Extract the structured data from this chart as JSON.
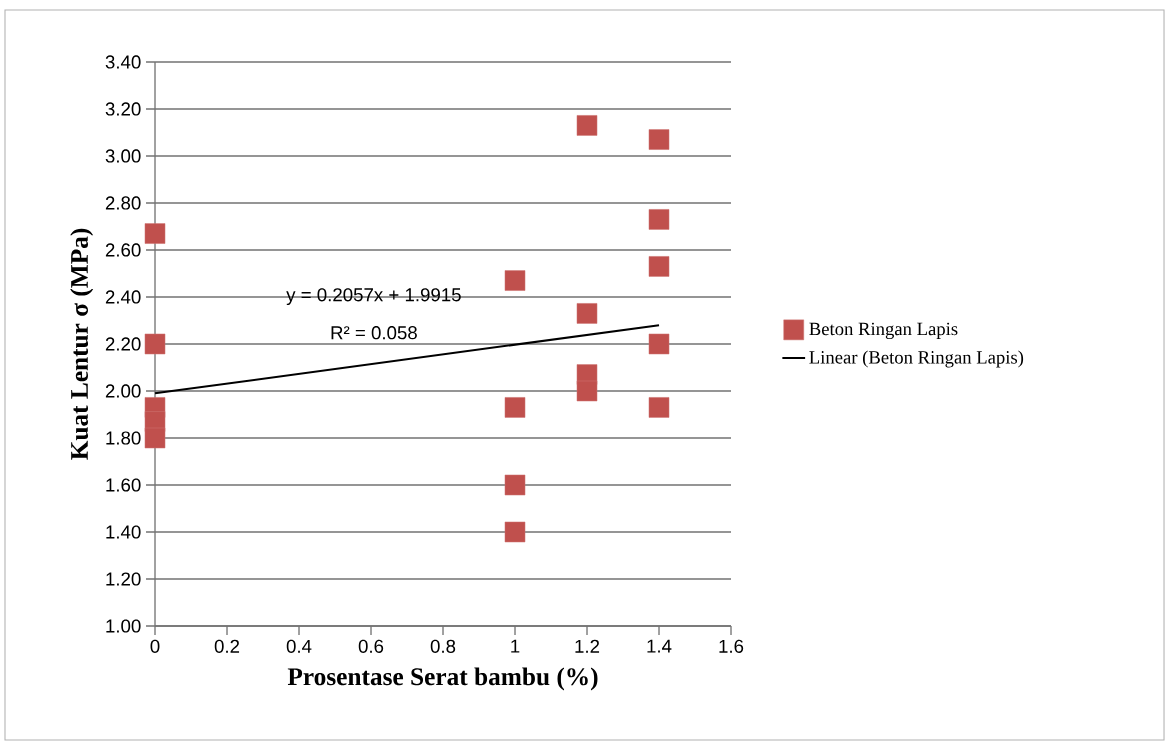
{
  "chart_data": {
    "type": "scatter",
    "xlabel": "Prosentase Serat bambu (%)",
    "ylabel": "Kuat Lentur σ (MPa)",
    "xlim": [
      0,
      1.6
    ],
    "xticks": [
      0,
      0.2,
      0.4,
      0.6,
      0.8,
      1,
      1.2,
      1.4,
      1.6
    ],
    "ylim": [
      1,
      3.4
    ],
    "yticks": [
      {
        "value": 1,
        "label": "1.00"
      },
      {
        "value": 1.2,
        "label": "1.20"
      },
      {
        "value": 1.4,
        "label": "1.40"
      },
      {
        "value": 1.6,
        "label": "1.60"
      },
      {
        "value": 1.8,
        "label": "1.80"
      },
      {
        "value": 2,
        "label": "2.00"
      },
      {
        "value": 2.2,
        "label": "2.20"
      },
      {
        "value": 2.4,
        "label": "2.40"
      },
      {
        "value": 2.6,
        "label": "2.60"
      },
      {
        "value": 2.8,
        "label": "2.80"
      },
      {
        "value": 3,
        "label": "3.00"
      },
      {
        "value": 3.2,
        "label": "3.20"
      },
      {
        "value": 3.4,
        "label": "3.40"
      }
    ],
    "grid": "y",
    "legend": "right",
    "marker": "square",
    "series": [
      {
        "name": "Beton Ringan Lapis",
        "color": "#c0504d",
        "x": [
          0,
          0,
          0,
          0,
          0,
          1,
          1,
          1,
          1,
          1.2,
          1.2,
          1.2,
          1.2,
          1.4,
          1.4,
          1.4,
          1.4,
          1.4
        ],
        "values": [
          2.67,
          2.2,
          1.93,
          1.87,
          1.8,
          2.47,
          1.93,
          1.6,
          1.4,
          3.13,
          2.33,
          2.07,
          2.0,
          3.07,
          2.73,
          2.53,
          2.2,
          1.93
        ]
      },
      {
        "name": "Linear (Beton Ringan Lapis)",
        "type": "line",
        "color": "#000000",
        "marker": "none",
        "x": [
          0,
          1.4
        ],
        "values": [
          1.99,
          2.28
        ]
      }
    ],
    "annotations": [
      "y = 0.2057x + 1.9915",
      "R² = 0.058"
    ]
  }
}
